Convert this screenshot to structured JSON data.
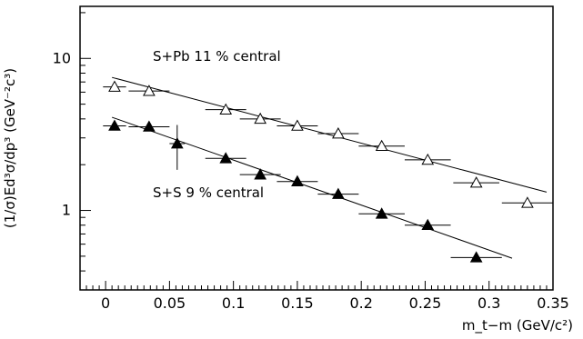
{
  "chart_data": {
    "type": "scatter",
    "xlabel": "m_t−m (GeV/c²)",
    "ylabel": "(1/σ)Ed³σ/dp³ (GeV⁻²c³)",
    "xlim": [
      -0.02,
      0.35
    ],
    "ylim": [
      0.3,
      22
    ],
    "y_scale": "log",
    "x_ticks": [
      "0",
      "0.05",
      "0.1",
      "0.15",
      "0.2",
      "0.25",
      "0.3",
      "0.35"
    ],
    "y_ticks": [
      "1",
      "10"
    ],
    "grid": false,
    "series": [
      {
        "name": "S+Pb 11 % central",
        "marker": "open-triangle",
        "points": [
          {
            "x": 0.007,
            "y": 6.5,
            "xerr": 0.009
          },
          {
            "x": 0.034,
            "y": 6.1,
            "xerr": 0.016
          },
          {
            "x": 0.094,
            "y": 4.6,
            "xerr": 0.016
          },
          {
            "x": 0.121,
            "y": 4.0,
            "xerr": 0.016
          },
          {
            "x": 0.15,
            "y": 3.6,
            "xerr": 0.016
          },
          {
            "x": 0.182,
            "y": 3.2,
            "xerr": 0.016
          },
          {
            "x": 0.216,
            "y": 2.65,
            "xerr": 0.018
          },
          {
            "x": 0.252,
            "y": 2.15,
            "xerr": 0.018
          },
          {
            "x": 0.29,
            "y": 1.52,
            "xerr": 0.018
          },
          {
            "x": 0.33,
            "y": 1.12,
            "xerr": 0.02
          }
        ],
        "fit": {
          "x0": 0.005,
          "y0": 7.5,
          "x1": 0.345,
          "y1": 1.32
        }
      },
      {
        "name": "S+S 9 % central",
        "marker": "filled-triangle",
        "points": [
          {
            "x": 0.007,
            "y": 3.6,
            "xerr": 0.009,
            "yerr": 0.15
          },
          {
            "x": 0.034,
            "y": 3.55,
            "xerr": 0.016
          },
          {
            "x": 0.056,
            "y": 2.75,
            "xerr": 0.006,
            "yerr": 0.9
          },
          {
            "x": 0.094,
            "y": 2.2,
            "xerr": 0.016
          },
          {
            "x": 0.121,
            "y": 1.72,
            "xerr": 0.016
          },
          {
            "x": 0.15,
            "y": 1.55,
            "xerr": 0.016
          },
          {
            "x": 0.182,
            "y": 1.28,
            "xerr": 0.016
          },
          {
            "x": 0.216,
            "y": 0.95,
            "xerr": 0.018
          },
          {
            "x": 0.252,
            "y": 0.8,
            "xerr": 0.018
          },
          {
            "x": 0.29,
            "y": 0.49,
            "xerr": 0.02
          }
        ],
        "fit": {
          "x0": 0.005,
          "y0": 4.1,
          "x1": 0.318,
          "y1": 0.485
        }
      }
    ],
    "annotations": [
      "S+Pb 11 % central",
      "S+S 9 % central"
    ]
  }
}
